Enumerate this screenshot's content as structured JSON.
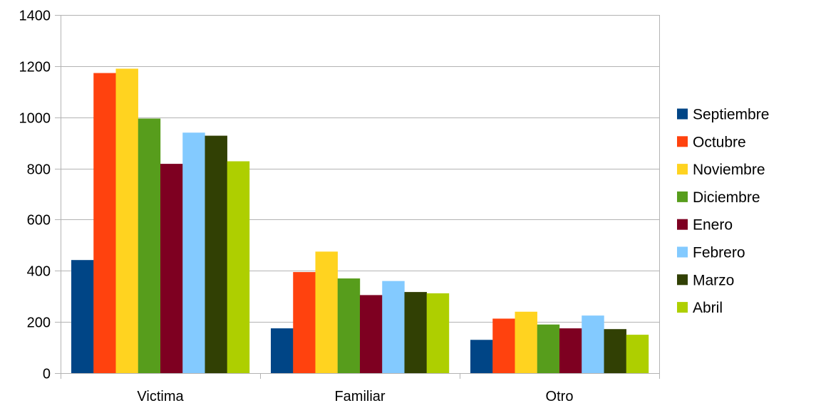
{
  "chart_data": {
    "type": "bar",
    "title": "",
    "xlabel": "",
    "ylabel": "",
    "categories": [
      "Victima",
      "Familiar",
      "Otro"
    ],
    "ylim": [
      0,
      1400
    ],
    "yticks": [
      0,
      200,
      400,
      600,
      800,
      1000,
      1200,
      1400
    ],
    "grid": true,
    "legend_position": "right",
    "series": [
      {
        "name": "Septiembre",
        "color": "#004586",
        "values": [
          442,
          175,
          130
        ]
      },
      {
        "name": "Octubre",
        "color": "#ff420e",
        "values": [
          1173,
          395,
          213
        ]
      },
      {
        "name": "Noviembre",
        "color": "#ffd320",
        "values": [
          1190,
          475,
          240
        ]
      },
      {
        "name": "Diciembre",
        "color": "#579d1c",
        "values": [
          995,
          370,
          190
        ]
      },
      {
        "name": "Enero",
        "color": "#7e0021",
        "values": [
          818,
          305,
          175
        ]
      },
      {
        "name": "Febrero",
        "color": "#83caff",
        "values": [
          940,
          360,
          225
        ]
      },
      {
        "name": "Marzo",
        "color": "#314004",
        "values": [
          928,
          317,
          172
        ]
      },
      {
        "name": "Abril",
        "color": "#aecf00",
        "values": [
          828,
          312,
          150
        ]
      }
    ]
  }
}
